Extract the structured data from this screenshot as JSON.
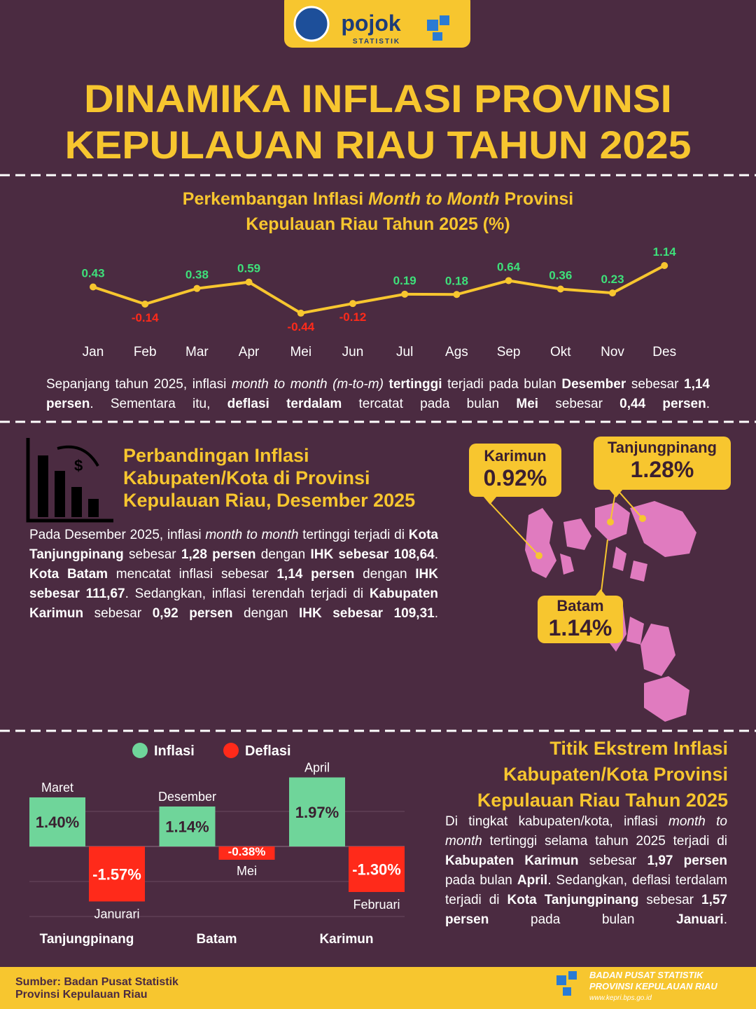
{
  "header": {
    "logo_text": "pojok",
    "logo_sub": "STATISTIK",
    "title_lines": [
      "DINAMIKA INFLASI PROVINSI",
      "KEPULAUAN RIAU TAHUN 2025"
    ]
  },
  "chart_data": [
    {
      "type": "line",
      "title": [
        {
          "text": "Perkembangan Inflasi "
        },
        {
          "text": "Month to Month",
          "italic": true
        },
        {
          "text": " Provinsi"
        }
      ],
      "title_line2": "Kepulauan Riau Tahun 2025 (%)",
      "categories": [
        "Jan",
        "Feb",
        "Mar",
        "Apr",
        "Mei",
        "Jun",
        "Jul",
        "Ags",
        "Sep",
        "Okt",
        "Nov",
        "Des"
      ],
      "values": [
        0.43,
        -0.14,
        0.38,
        0.59,
        -0.44,
        -0.12,
        0.19,
        0.18,
        0.64,
        0.36,
        0.23,
        1.14
      ],
      "color": "#f7c62f",
      "positive_color": "#3ee07a",
      "negative_color": "#ff2a1a"
    },
    {
      "type": "bar",
      "categories": [
        "Tanjungpinang",
        "Batam",
        "Karimun"
      ],
      "series": [
        {
          "name": "Inflasi",
          "color": "#6fd59a",
          "values": [
            1.4,
            1.14,
            1.97
          ],
          "value_labels": [
            "1.40%",
            "1.14%",
            "1.97%"
          ],
          "months": [
            "Maret",
            "Desember",
            "April"
          ]
        },
        {
          "name": "Deflasi",
          "color": "#ff2a1a",
          "values": [
            -1.57,
            -0.38,
            -1.3
          ],
          "value_labels": [
            "-1.57%",
            "-0.38%",
            "-1.30%"
          ],
          "months": [
            "Janurari",
            "Mei",
            "Februari"
          ]
        }
      ]
    }
  ],
  "summary": [
    {
      "text": "Sepanjang tahun 2025, inflasi "
    },
    {
      "text": "month to month (m-to-m)",
      "italic": true
    },
    {
      "text": " tertinggi",
      "bold": true
    },
    {
      "text": " terjadi pada bulan "
    },
    {
      "text": "Desember",
      "bold": true
    },
    {
      "text": " sebesar "
    },
    {
      "text": "1,14 persen",
      "bold": true
    },
    {
      "text": ". Sementara itu, "
    },
    {
      "text": "deflasi terdalam",
      "bold": true
    },
    {
      "text": " tercatat pada bulan "
    },
    {
      "text": "Mei",
      "bold": true
    },
    {
      "text": " sebesar "
    },
    {
      "text": "0,44 persen",
      "bold": true
    },
    {
      "text": "."
    }
  ],
  "comparison": {
    "title_lines": [
      "Perbandingan Inflasi",
      "Kabupaten/Kota di Provinsi",
      "Kepulauan Riau, Desember 2025"
    ],
    "paragraph": [
      {
        "text": "Pada Desember 2025, inflasi "
      },
      {
        "text": "month to month",
        "italic": true
      },
      {
        "text": " tertinggi terjadi di "
      },
      {
        "text": "Kota Tanjungpinang",
        "bold": true
      },
      {
        "text": " sebesar "
      },
      {
        "text": "1,28 persen",
        "bold": true
      },
      {
        "text": " dengan "
      },
      {
        "text": "IHK sebesar 108,64",
        "bold": true
      },
      {
        "text": ". "
      },
      {
        "text": "Kota Batam",
        "bold": true
      },
      {
        "text": " mencatat inflasi sebesar "
      },
      {
        "text": "1,14 persen",
        "bold": true
      },
      {
        "text": " dengan "
      },
      {
        "text": "IHK sebesar 111,67",
        "bold": true
      },
      {
        "text": ". Sedangkan, inflasi terendah terjadi di "
      },
      {
        "text": "Kabupaten Karimun",
        "bold": true
      },
      {
        "text": " sebesar "
      },
      {
        "text": "0,92 persen",
        "bold": true
      },
      {
        "text": " dengan "
      },
      {
        "text": "IHK sebesar 109,31",
        "bold": true
      },
      {
        "text": "."
      }
    ],
    "map_callouts": [
      {
        "name": "Karimun",
        "label": "0.92%"
      },
      {
        "name": "Tanjungpinang",
        "label": "1.28%"
      },
      {
        "name": "Batam",
        "label": "1.14%"
      }
    ]
  },
  "extremes": {
    "title_lines": [
      "Titik Ekstrem Inflasi",
      "Kabupaten/Kota Provinsi",
      "Kepulauan Riau Tahun 2025"
    ],
    "paragraph": [
      {
        "text": "Di tingkat kabupaten/kota, inflasi "
      },
      {
        "text": "month to month",
        "italic": true
      },
      {
        "text": " tertinggi selama tahun 2025 terjadi di "
      },
      {
        "text": "Kabupaten Karimun",
        "bold": true
      },
      {
        "text": " sebesar "
      },
      {
        "text": "1,97 persen",
        "bold": true
      },
      {
        "text": " pada bulan "
      },
      {
        "text": "April",
        "bold": true
      },
      {
        "text": ". Sedangkan, deflasi terdalam terjadi di "
      },
      {
        "text": "Kota Tanjungpinang",
        "bold": true
      },
      {
        "text": " sebesar "
      },
      {
        "text": "1,57 persen",
        "bold": true
      },
      {
        "text": " pada bulan "
      },
      {
        "text": "Januari",
        "bold": true
      },
      {
        "text": "."
      }
    ]
  },
  "footer": {
    "source_lines": [
      "Sumber: Badan Pusat Statistik",
      "Provinsi Kepulauan Riau"
    ],
    "org_lines": [
      "BADAN PUSAT STATISTIK",
      "PROVINSI KEPULAUAN RIAU"
    ],
    "url": "www.kepri.bps.go.id"
  }
}
